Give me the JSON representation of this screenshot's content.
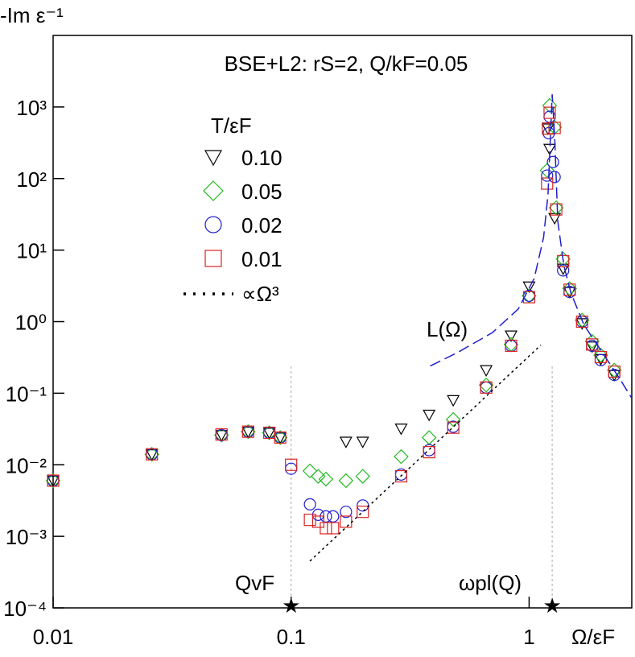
{
  "chart_data": {
    "type": "scatter",
    "title": "BSE+L2: rS=2, Q/kF=0.05",
    "y_label": "-Im ε⁻¹",
    "x_label": "Ω/εF",
    "legend_title": "T/εF",
    "annotations": {
      "curve": "L(Ω)",
      "qvf": "QvF",
      "wpl": "ωpl(Q)"
    },
    "log_x": true,
    "log_y": true,
    "xlim": [
      0.01,
      2.7
    ],
    "ylim": [
      0.0001,
      10000
    ],
    "xticks": [
      0.01,
      0.1,
      1
    ],
    "yticks": [
      {
        "value": 0.0001,
        "label": "10⁻⁴"
      },
      {
        "value": 0.001,
        "label": "10⁻³"
      },
      {
        "value": 0.01,
        "label": "10⁻²"
      },
      {
        "value": 0.1,
        "label": "10⁻¹"
      },
      {
        "value": 1,
        "label": "10⁰"
      },
      {
        "value": 10,
        "label": "10¹"
      },
      {
        "value": 100,
        "label": "10²"
      },
      {
        "value": 1000,
        "label": "10³"
      }
    ],
    "vlines": [
      0.1,
      1.25
    ],
    "series": [
      {
        "name": "0.10",
        "color": "#000000",
        "marker": "triangle-down",
        "x": [
          0.01,
          0.026,
          0.051,
          0.066,
          0.081,
          0.09,
          0.17,
          0.2,
          0.29,
          0.38,
          0.48,
          0.66,
          0.84,
          1.0,
          1.2,
          1.22,
          1.28,
          1.39,
          1.48,
          1.67,
          1.84,
          2.0,
          2.28
        ],
        "values": [
          0.006,
          0.014,
          0.026,
          0.029,
          0.028,
          0.024,
          0.021,
          0.021,
          0.032,
          0.05,
          0.08,
          0.21,
          0.64,
          3.1,
          500,
          260,
          28,
          5.5,
          2.6,
          0.95,
          0.45,
          0.3,
          0.18
        ]
      },
      {
        "name": "0.05",
        "color": "#22bb22",
        "marker": "diamond",
        "x": [
          0.01,
          0.026,
          0.051,
          0.066,
          0.081,
          0.09,
          0.12,
          0.13,
          0.14,
          0.17,
          0.2,
          0.29,
          0.38,
          0.48,
          0.66,
          0.84,
          1.0,
          1.19,
          1.22,
          1.28,
          1.3,
          1.39,
          1.48,
          1.67,
          1.84,
          2.0,
          2.28
        ],
        "values": [
          0.006,
          0.014,
          0.026,
          0.029,
          0.028,
          0.024,
          0.0082,
          0.0069,
          0.0063,
          0.006,
          0.0069,
          0.013,
          0.024,
          0.043,
          0.13,
          0.48,
          2.3,
          130,
          1050,
          520,
          39,
          7.5,
          2.9,
          1.05,
          0.53,
          0.34,
          0.21
        ]
      },
      {
        "name": "0.02",
        "color": "#1f1fcc",
        "marker": "circle",
        "x": [
          0.01,
          0.026,
          0.051,
          0.066,
          0.081,
          0.09,
          0.1,
          0.12,
          0.13,
          0.14,
          0.15,
          0.17,
          0.2,
          0.29,
          0.38,
          0.48,
          0.66,
          0.84,
          1.0,
          1.19,
          1.21,
          1.22,
          1.26,
          1.28,
          1.39,
          1.48,
          1.67,
          1.84,
          2.0,
          2.28
        ],
        "values": [
          0.006,
          0.014,
          0.026,
          0.029,
          0.028,
          0.024,
          0.0088,
          0.0028,
          0.002,
          0.0019,
          0.0019,
          0.0022,
          0.0027,
          0.0073,
          0.016,
          0.034,
          0.12,
          0.46,
          2.3,
          110,
          430,
          730,
          170,
          105,
          5.2,
          2.6,
          1.0,
          0.46,
          0.29,
          0.18
        ]
      },
      {
        "name": "0.01",
        "color": "#dd2222",
        "marker": "square",
        "x": [
          0.01,
          0.026,
          0.051,
          0.066,
          0.081,
          0.09,
          0.1,
          0.12,
          0.13,
          0.14,
          0.15,
          0.17,
          0.2,
          0.29,
          0.38,
          0.48,
          0.66,
          0.84,
          1.0,
          1.19,
          1.2,
          1.22,
          1.28,
          1.3,
          1.39,
          1.48,
          1.67,
          1.84,
          2.0,
          2.28
        ],
        "values": [
          0.006,
          0.014,
          0.0265,
          0.029,
          0.028,
          0.024,
          0.01,
          0.0017,
          0.0016,
          0.0013,
          0.0013,
          0.0016,
          0.0022,
          0.0069,
          0.015,
          0.033,
          0.12,
          0.46,
          2.2,
          85,
          500,
          830,
          510,
          37,
          7,
          2.8,
          1.0,
          0.48,
          0.32,
          0.2
        ]
      },
      {
        "name": "∝Ω³",
        "color": "#000000",
        "marker": "dotted-line",
        "x": [
          0.12,
          1.12
        ],
        "values": [
          0.00045,
          0.47
        ]
      },
      {
        "name": "L(Ω)",
        "color": "#1f1fcc",
        "marker": "dashed-line",
        "x": [
          0.384,
          0.5,
          0.7,
          0.9,
          1.05,
          1.15,
          1.2,
          1.23,
          1.25,
          1.28,
          1.32,
          1.4,
          1.5,
          1.7,
          2.0,
          2.4,
          2.69
        ],
        "values": [
          0.24,
          0.37,
          0.7,
          1.5,
          4,
          15,
          60,
          400,
          1500,
          400,
          25,
          6,
          2.5,
          0.9,
          0.4,
          0.16,
          0.087
        ]
      }
    ]
  }
}
